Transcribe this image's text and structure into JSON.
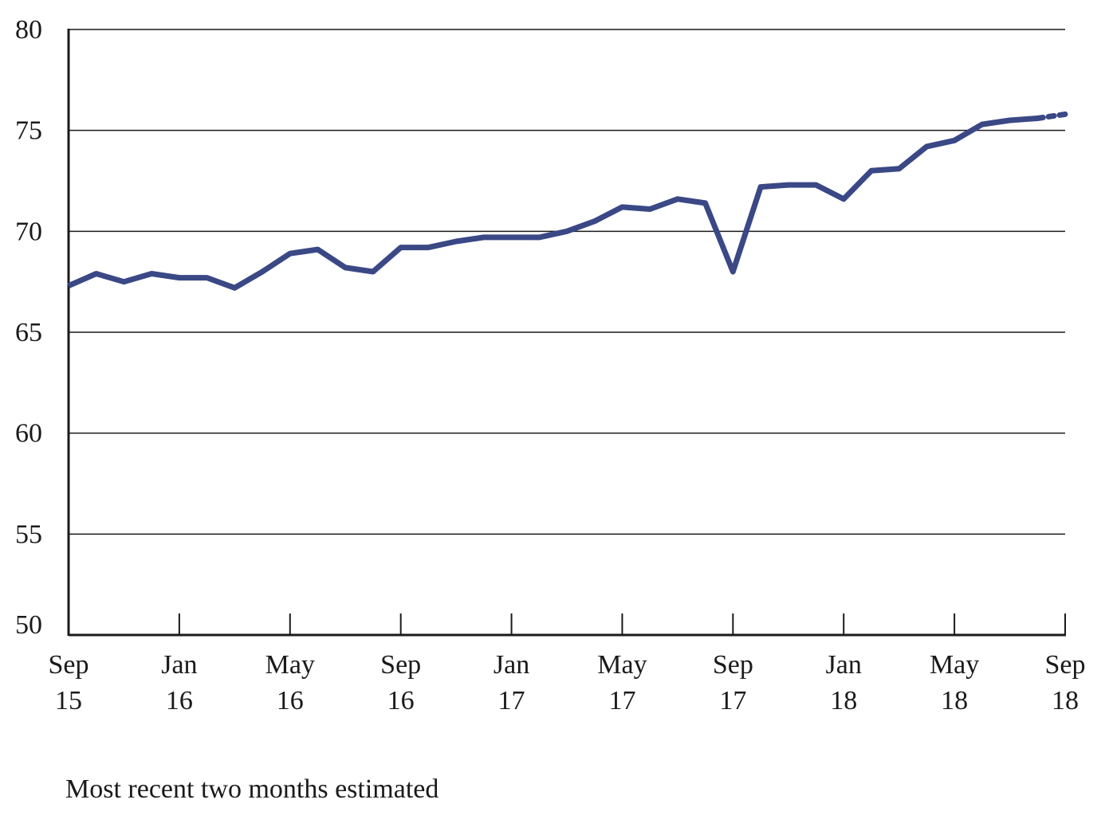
{
  "chart_data": {
    "type": "line",
    "title": "",
    "xlabel": "",
    "ylabel": "",
    "ylim": [
      50,
      80
    ],
    "y_ticks": [
      50,
      55,
      60,
      65,
      70,
      75,
      80
    ],
    "x_ticks": [
      {
        "month": "Sep",
        "year": "15"
      },
      {
        "month": "Jan",
        "year": "16"
      },
      {
        "month": "May",
        "year": "16"
      },
      {
        "month": "Sep",
        "year": "16"
      },
      {
        "month": "Jan",
        "year": "17"
      },
      {
        "month": "May",
        "year": "17"
      },
      {
        "month": "Sep",
        "year": "17"
      },
      {
        "month": "Jan",
        "year": "18"
      },
      {
        "month": "May",
        "year": "18"
      },
      {
        "month": "Sep",
        "year": "18"
      }
    ],
    "grid": "horizontal",
    "line_color": "#3a4886",
    "x": [
      "2015-09",
      "2015-10",
      "2015-11",
      "2015-12",
      "2016-01",
      "2016-02",
      "2016-03",
      "2016-04",
      "2016-05",
      "2016-06",
      "2016-07",
      "2016-08",
      "2016-09",
      "2016-10",
      "2016-11",
      "2016-12",
      "2017-01",
      "2017-02",
      "2017-03",
      "2017-04",
      "2017-05",
      "2017-06",
      "2017-07",
      "2017-08",
      "2017-09",
      "2017-10",
      "2017-11",
      "2017-12",
      "2018-01",
      "2018-02",
      "2018-03",
      "2018-04",
      "2018-05",
      "2018-06",
      "2018-07",
      "2018-08",
      "2018-09"
    ],
    "series": [
      {
        "values": [
          67.3,
          67.9,
          67.5,
          67.9,
          67.7,
          67.7,
          67.2,
          68.0,
          68.9,
          69.1,
          68.2,
          68.0,
          69.2,
          69.2,
          69.5,
          69.7,
          69.7,
          69.7,
          70.0,
          70.5,
          71.2,
          71.1,
          71.6,
          71.4,
          68.0,
          72.2,
          72.3,
          72.3,
          71.6,
          73.0,
          73.1,
          74.2,
          74.5,
          75.3,
          75.5,
          75.6,
          75.8
        ],
        "estimated_from_index": 35
      }
    ]
  },
  "footnote": "Most recent two months estimated"
}
